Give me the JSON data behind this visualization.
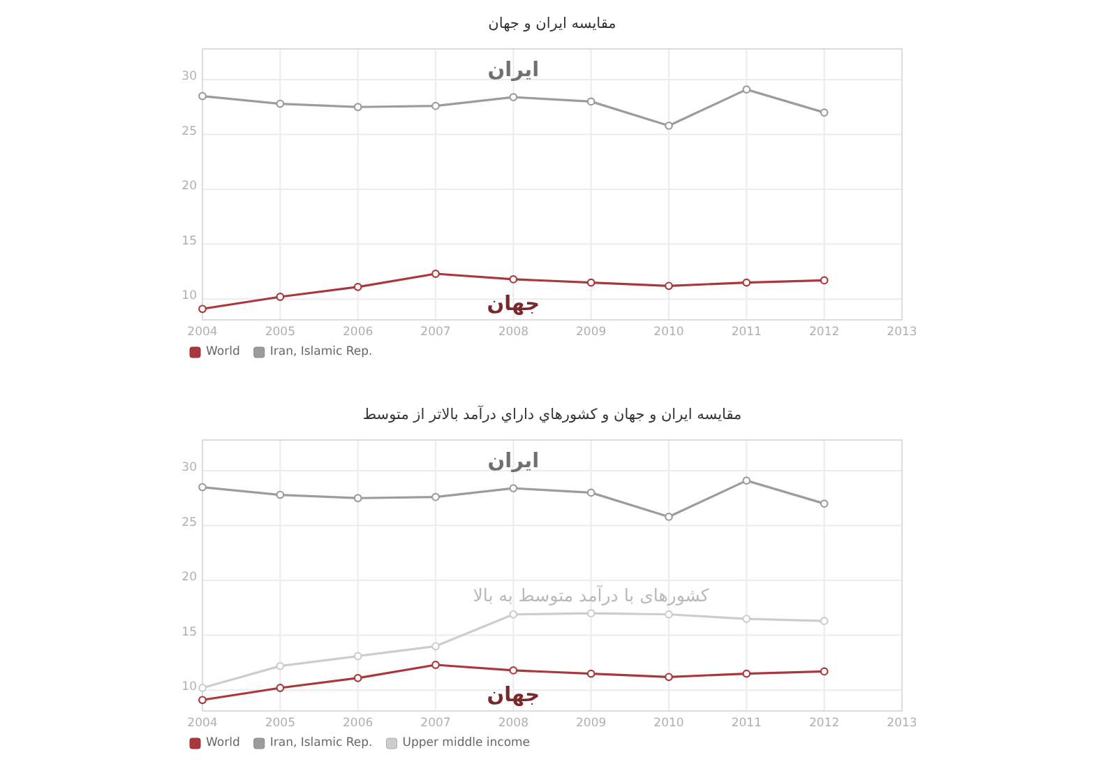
{
  "chart_data": [
    {
      "type": "line",
      "title": "مقایسه ایران و جهان",
      "x": [
        "2004",
        "2005",
        "2006",
        "2007",
        "2008",
        "2009",
        "2010",
        "2011",
        "2012"
      ],
      "series": [
        {
          "name": "World",
          "color": "#a8383c",
          "values": [
            9.1,
            10.2,
            11.1,
            12.3,
            11.8,
            11.5,
            11.2,
            11.5,
            11.7
          ]
        },
        {
          "name": "Iran, Islamic Rep.",
          "color": "#9c9c9c",
          "values": [
            28.5,
            27.8,
            27.5,
            27.6,
            28.4,
            28.0,
            25.8,
            29.1,
            27.0
          ]
        }
      ],
      "xlim": [
        "2004",
        "2013"
      ],
      "xticks": [
        "2004",
        "2005",
        "2006",
        "2007",
        "2008",
        "2009",
        "2010",
        "2011",
        "2012",
        "2013"
      ],
      "ylim": [
        8.1,
        32.8
      ],
      "yticks": [
        10,
        15,
        20,
        25,
        30
      ],
      "grid": true,
      "legend": "bottom left",
      "marker": "circle",
      "line_style": "solid",
      "annotations": [
        {
          "text": "ایران",
          "x": "2008",
          "y": 28.4
        },
        {
          "text": "جهان",
          "x": "2008",
          "y": 11.8
        }
      ]
    },
    {
      "type": "line",
      "title": "مقایسه ایران و جهان و کشورهاي داراي درآمد بالاتر از متوسط",
      "x": [
        "2004",
        "2005",
        "2006",
        "2007",
        "2008",
        "2009",
        "2010",
        "2011",
        "2012"
      ],
      "series": [
        {
          "name": "World",
          "color": "#a8383c",
          "values": [
            9.1,
            10.2,
            11.1,
            12.3,
            11.8,
            11.5,
            11.2,
            11.5,
            11.7
          ]
        },
        {
          "name": "Iran, Islamic Rep.",
          "color": "#9c9c9c",
          "values": [
            28.5,
            27.8,
            27.5,
            27.6,
            28.4,
            28.0,
            25.8,
            29.1,
            27.0
          ]
        },
        {
          "name": "Upper middle income",
          "color": "#cdcdcd",
          "values": [
            10.2,
            12.2,
            13.1,
            14.0,
            16.9,
            17.0,
            16.9,
            16.5,
            16.3
          ]
        }
      ],
      "xlim": [
        "2004",
        "2013"
      ],
      "xticks": [
        "2004",
        "2005",
        "2006",
        "2007",
        "2008",
        "2009",
        "2010",
        "2011",
        "2012",
        "2013"
      ],
      "ylim": [
        8.1,
        32.8
      ],
      "yticks": [
        10,
        15,
        20,
        25,
        30
      ],
      "grid": true,
      "legend": "bottom left",
      "marker": "circle",
      "line_style": "solid",
      "annotations": [
        {
          "text": "ایران",
          "x": "2008",
          "y": 28.4
        },
        {
          "text": "جهان",
          "x": "2008",
          "y": 11.8
        },
        {
          "text": "کشورهای با درآمد متوسط به بالا",
          "x": "2009",
          "y": 17.0
        }
      ]
    }
  ]
}
